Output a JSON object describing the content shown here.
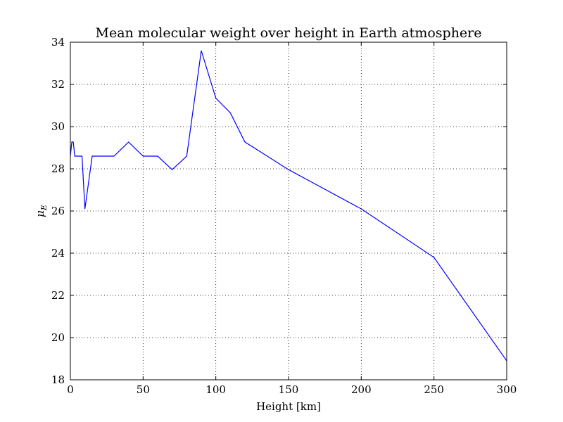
{
  "chart_data": {
    "type": "line",
    "title": "Mean molecular weight over height in Earth atmosphere",
    "xlabel": "Height [km]",
    "ylabel": "μ_E",
    "xlim": [
      0,
      300
    ],
    "ylim": [
      18,
      34
    ],
    "xticks": [
      0,
      50,
      100,
      150,
      200,
      250,
      300
    ],
    "yticks": [
      18,
      20,
      22,
      24,
      26,
      28,
      30,
      32,
      34
    ],
    "grid": true,
    "line_color": "#0000ff",
    "series": [
      {
        "x": [
          0,
          1,
          2,
          3,
          5,
          8,
          10,
          15,
          20,
          30,
          40,
          50,
          60,
          70,
          80,
          90,
          100,
          110,
          120,
          150,
          200,
          250,
          300
        ],
        "y": [
          28.6,
          29.27,
          29.27,
          28.6,
          28.6,
          28.6,
          26.1,
          28.6,
          28.6,
          28.6,
          29.27,
          28.6,
          28.6,
          27.96,
          28.6,
          33.6,
          31.35,
          30.65,
          29.27,
          27.96,
          26.1,
          23.8,
          18.9
        ]
      }
    ]
  }
}
